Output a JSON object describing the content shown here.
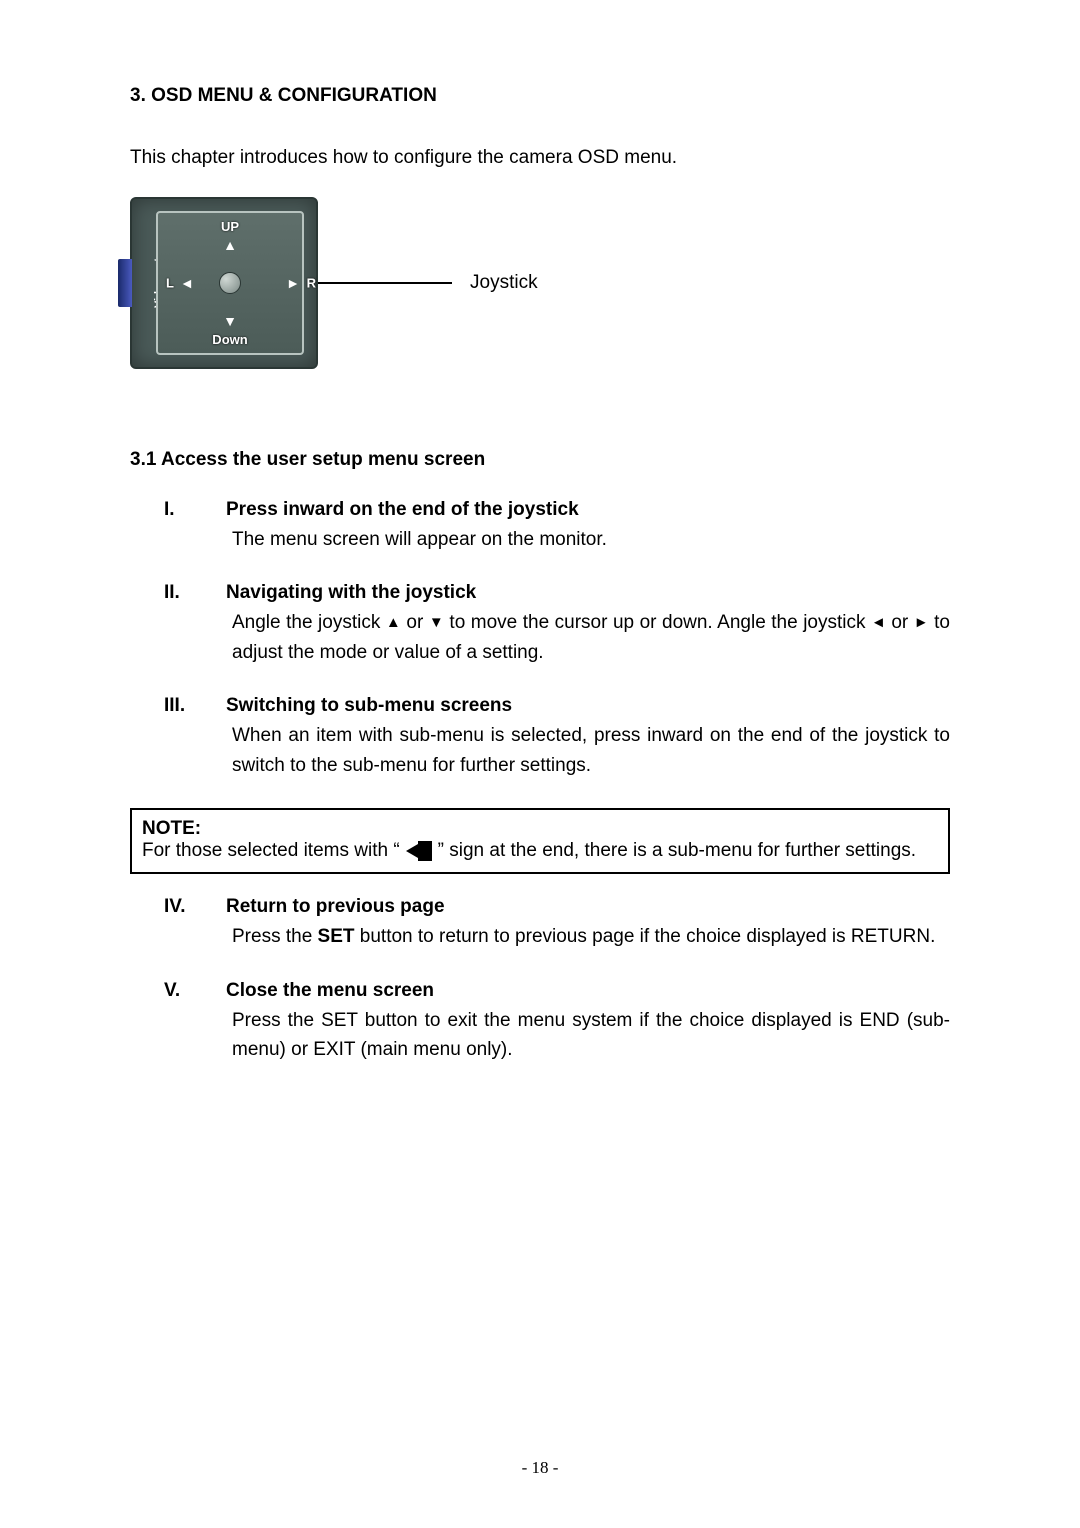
{
  "section_title": "3. OSD MENU & CONFIGURATION",
  "intro": "This chapter introduces how to configure the camera OSD menu.",
  "joystick": {
    "up": "UP",
    "down": "Down",
    "left": "L",
    "right": "R",
    "video_out": "Video out",
    "callout": "Joystick"
  },
  "subheading": "3.1 Access the user setup menu screen",
  "items": [
    {
      "roman": "I.",
      "title": "Press inward on the end of the joystick",
      "text": "The menu screen will appear on the monitor."
    },
    {
      "roman": "II.",
      "title": "Navigating with the joystick",
      "text_pre": "Angle the joystick ",
      "text_mid1": " or ",
      "text_mid2": " to move the cursor up or down. Angle the joystick ",
      "text_mid3": " or ",
      "text_post": " to adjust the mode or value of a setting."
    },
    {
      "roman": "III.",
      "title": "Switching to sub-menu screens",
      "text": "When an item with sub-menu is selected, press inward on the end of the joystick to switch to the sub-menu for further settings."
    },
    {
      "roman": "IV.",
      "title": "Return to previous page",
      "text_pre": "Press the ",
      "text_bold": "SET",
      "text_post": " button to return to previous page if the choice displayed is RETURN."
    },
    {
      "roman": "V.",
      "title": "Close the menu screen",
      "text": "Press the SET button to exit the menu system if the choice displayed is END (sub-menu) or EXIT (main menu only)."
    }
  ],
  "note": {
    "label": "NOTE:",
    "text_pre": "For those selected items with “",
    "text_post": "” sign at the end, there is a sub-menu for further settings."
  },
  "triangles": {
    "up": "▲",
    "down": "▼",
    "left": "◄",
    "right": "►"
  },
  "page_number": "- 18 -",
  "colors": {
    "text": "#000000",
    "background": "#ffffff",
    "border": "#000000"
  }
}
